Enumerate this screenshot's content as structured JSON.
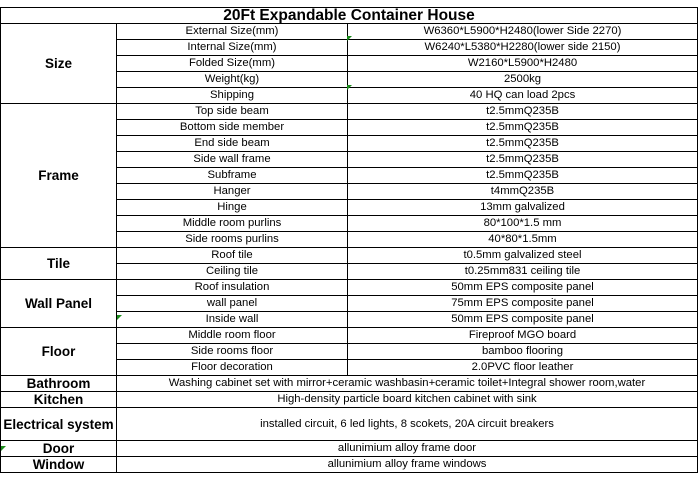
{
  "title": "20Ft Expandable Container House",
  "sections": [
    {
      "category": "Size",
      "rows": [
        {
          "label": "External Size(mm)",
          "value": "W6360*L5900*H2480(lower Side 2270)"
        },
        {
          "label": "Internal Size(mm)",
          "value": "W6240*L5380*H2280(lower side 2150)"
        },
        {
          "label": "Folded Size(mm)",
          "value": "W2160*L5900*H2480"
        },
        {
          "label": "Weight(kg)",
          "value": "2500kg"
        },
        {
          "label": "Shipping",
          "value": "40 HQ can load 2pcs"
        }
      ]
    },
    {
      "category": "Frame",
      "rows": [
        {
          "label": "Top side beam",
          "value": "t2.5mmQ235B"
        },
        {
          "label": "Bottom side member",
          "value": "t2.5mmQ235B"
        },
        {
          "label": "End side beam",
          "value": "t2.5mmQ235B"
        },
        {
          "label": "Side wall frame",
          "value": "t2.5mmQ235B"
        },
        {
          "label": "Subframe",
          "value": "t2.5mmQ235B"
        },
        {
          "label": "Hanger",
          "value": "t4mmQ235B"
        },
        {
          "label": "Hinge",
          "value": "13mm galvalized"
        },
        {
          "label": "Middle room purlins",
          "value": "80*100*1.5 mm"
        },
        {
          "label": "Side rooms purlins",
          "value": "40*80*1.5mm"
        }
      ]
    },
    {
      "category": "Tile",
      "rows": [
        {
          "label": "Roof tile",
          "value": "t0.5mm galvalized steel"
        },
        {
          "label": "Ceiling tile",
          "value": "t0.25mm831 ceiling tile"
        }
      ]
    },
    {
      "category": "Wall Panel",
      "rows": [
        {
          "label": "Roof insulation",
          "value": "50mm EPS composite panel"
        },
        {
          "label": "wall panel",
          "value": "75mm EPS composite panel"
        },
        {
          "label": "Inside wall",
          "value": "50mm EPS composite panel"
        }
      ]
    },
    {
      "category": "Floor",
      "rows": [
        {
          "label": "Middle room floor",
          "value": "Fireproof MGO board"
        },
        {
          "label": "Side rooms floor",
          "value": "bamboo flooring"
        },
        {
          "label": "Floor decoration",
          "value": "2.0PVC floor leather"
        }
      ]
    }
  ],
  "single_rows": [
    {
      "category": "Bathroom",
      "value": "Washing cabinet set with mirror+ceramic washbasin+ceramic toilet+Integral shower room,water"
    },
    {
      "category": "Kitchen",
      "value": "High-density particle board kitchen cabinet with sink"
    },
    {
      "category": "Electrical system",
      "value": "installed circuit, 6 led lights, 8 scokets, 20A circuit breakers"
    },
    {
      "category": "Door",
      "value": "allunimium alloy frame door"
    },
    {
      "category": "Window",
      "value": "allunimium alloy frame windows"
    }
  ],
  "colors": {
    "cell_marker": "#1a8a1a",
    "grid": "#000000"
  }
}
